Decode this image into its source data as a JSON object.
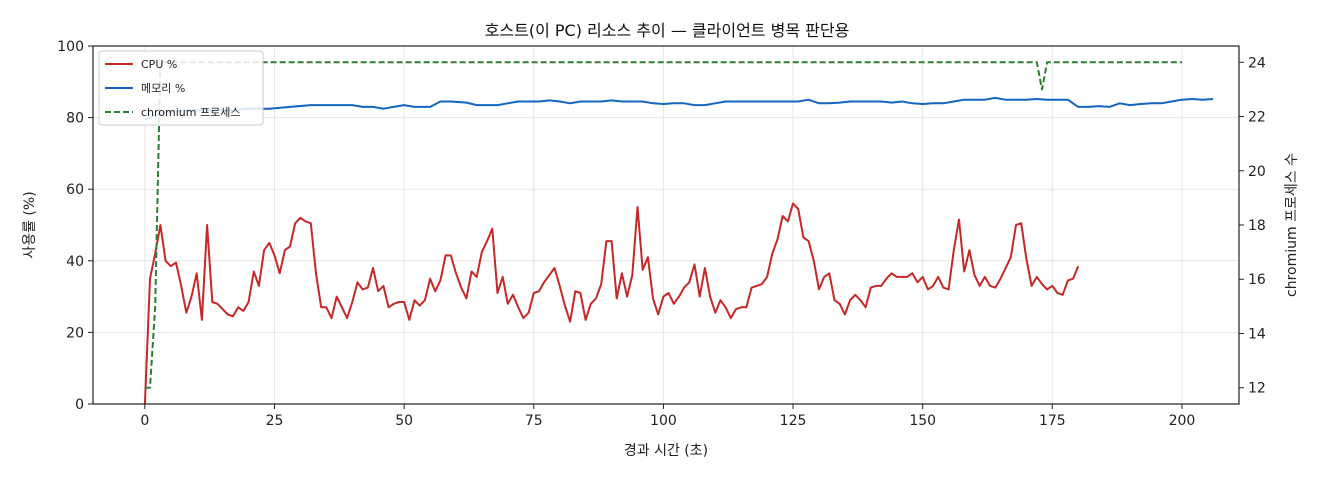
{
  "chart_data": {
    "type": "line",
    "title": "호스트(이 PC) 리소스 추이 — 클라이언트 병목 판단용",
    "xlabel": "경과 시간 (초)",
    "ylabel": "사용률 (%)",
    "y2label": "chromium 프로세스 수",
    "xlim": [
      -10,
      211
    ],
    "ylim": [
      0,
      100
    ],
    "y2lim": [
      11.4,
      24.6
    ],
    "xticks": [
      "0",
      "25",
      "50",
      "75",
      "100",
      "125",
      "150",
      "175",
      "200"
    ],
    "yticks": [
      "0",
      "20",
      "40",
      "60",
      "80",
      "100"
    ],
    "y2ticks": [
      "12",
      "14",
      "16",
      "18",
      "20",
      "22",
      "24"
    ],
    "grid": true,
    "legend_position": "top-left",
    "colors": {
      "cpu": "#c62828",
      "memory": "#1565c0",
      "chromium": "#2e7d32"
    },
    "series": [
      {
        "name": "CPU %",
        "axis": "left",
        "style": "solid",
        "points": [
          [
            0,
            0
          ],
          [
            1,
            35
          ],
          [
            2,
            42
          ],
          [
            3,
            50
          ],
          [
            4,
            40
          ],
          [
            5,
            38.5
          ],
          [
            6,
            39.5
          ],
          [
            7,
            33
          ],
          [
            8,
            25.5
          ],
          [
            9,
            30
          ],
          [
            10,
            36.5
          ],
          [
            11,
            23.5
          ],
          [
            12,
            50
          ],
          [
            13,
            28.5
          ],
          [
            14,
            28
          ],
          [
            15,
            26.5
          ],
          [
            16,
            25
          ],
          [
            17,
            24.5
          ],
          [
            18,
            27
          ],
          [
            19,
            26
          ],
          [
            20,
            28.5
          ],
          [
            21,
            37
          ],
          [
            22,
            33
          ],
          [
            23,
            43
          ],
          [
            24,
            45
          ],
          [
            25,
            41.5
          ],
          [
            26,
            36.5
          ],
          [
            27,
            43
          ],
          [
            28,
            44
          ],
          [
            29,
            50.5
          ],
          [
            30,
            52
          ],
          [
            31,
            51
          ],
          [
            32,
            50.5
          ],
          [
            33,
            36.5
          ],
          [
            34,
            27
          ],
          [
            35,
            27
          ],
          [
            36,
            24
          ],
          [
            37,
            30
          ],
          [
            38,
            27
          ],
          [
            39,
            24
          ],
          [
            40,
            28.5
          ],
          [
            41,
            34
          ],
          [
            42,
            32
          ],
          [
            43,
            32.5
          ],
          [
            44,
            38
          ],
          [
            45,
            31.5
          ],
          [
            46,
            33
          ],
          [
            47,
            27
          ],
          [
            48,
            28
          ],
          [
            49,
            28.5
          ],
          [
            50,
            28.5
          ],
          [
            51,
            23.5
          ],
          [
            52,
            29
          ],
          [
            53,
            27.5
          ],
          [
            54,
            29
          ],
          [
            55,
            35
          ],
          [
            56,
            31.5
          ],
          [
            57,
            34.5
          ],
          [
            58,
            41.5
          ],
          [
            59,
            41.5
          ],
          [
            60,
            36.5
          ],
          [
            61,
            32.5
          ],
          [
            62,
            29.5
          ],
          [
            63,
            37
          ],
          [
            64,
            35.5
          ],
          [
            65,
            42.5
          ],
          [
            66,
            45.5
          ],
          [
            67,
            49
          ],
          [
            68,
            31
          ],
          [
            69,
            35.5
          ],
          [
            70,
            28
          ],
          [
            71,
            30.5
          ],
          [
            72,
            27
          ],
          [
            73,
            24
          ],
          [
            74,
            25.5
          ],
          [
            75,
            31
          ],
          [
            76,
            31.5
          ],
          [
            77,
            34
          ],
          [
            78,
            36
          ],
          [
            79,
            38
          ],
          [
            80,
            33
          ],
          [
            81,
            27.5
          ],
          [
            82,
            23
          ],
          [
            83,
            31.5
          ],
          [
            84,
            31
          ],
          [
            85,
            23.5
          ],
          [
            86,
            28
          ],
          [
            87,
            29.5
          ],
          [
            88,
            33.5
          ],
          [
            89,
            45.5
          ],
          [
            90,
            45.5
          ],
          [
            91,
            29.5
          ],
          [
            92,
            36.5
          ],
          [
            93,
            30
          ],
          [
            94,
            36
          ],
          [
            95,
            55
          ],
          [
            96,
            37.5
          ],
          [
            97,
            41
          ],
          [
            98,
            29.5
          ],
          [
            99,
            25
          ],
          [
            100,
            30
          ],
          [
            101,
            31
          ],
          [
            102,
            28
          ],
          [
            103,
            30
          ],
          [
            104,
            32.5
          ],
          [
            105,
            34
          ],
          [
            106,
            39
          ],
          [
            107,
            30
          ],
          [
            108,
            38
          ],
          [
            109,
            30
          ],
          [
            110,
            25.5
          ],
          [
            111,
            29
          ],
          [
            112,
            27
          ],
          [
            113,
            24
          ],
          [
            114,
            26.5
          ],
          [
            115,
            27
          ],
          [
            116,
            27
          ],
          [
            117,
            32.5
          ],
          [
            118,
            33
          ],
          [
            119,
            33.5
          ],
          [
            120,
            35.5
          ],
          [
            121,
            42
          ],
          [
            122,
            46
          ],
          [
            123,
            52.5
          ],
          [
            124,
            51
          ],
          [
            125,
            56
          ],
          [
            126,
            54.5
          ],
          [
            127,
            46.5
          ],
          [
            128,
            45.5
          ],
          [
            129,
            40
          ],
          [
            130,
            32
          ],
          [
            131,
            35.5
          ],
          [
            132,
            36.5
          ],
          [
            133,
            29
          ],
          [
            134,
            28
          ],
          [
            135,
            25
          ],
          [
            136,
            29
          ],
          [
            137,
            30.5
          ],
          [
            138,
            29
          ],
          [
            139,
            27
          ],
          [
            140,
            32.5
          ],
          [
            141,
            33
          ],
          [
            142,
            33
          ],
          [
            143,
            35
          ],
          [
            144,
            36.5
          ],
          [
            145,
            35.5
          ],
          [
            146,
            35.5
          ],
          [
            147,
            35.5
          ],
          [
            148,
            36.5
          ],
          [
            149,
            34
          ],
          [
            150,
            35.5
          ],
          [
            151,
            32
          ],
          [
            152,
            33
          ],
          [
            153,
            35.5
          ],
          [
            154,
            32.5
          ],
          [
            155,
            32
          ],
          [
            156,
            43
          ],
          [
            157,
            51.5
          ],
          [
            158,
            37
          ],
          [
            159,
            43
          ],
          [
            160,
            36
          ],
          [
            161,
            33
          ],
          [
            162,
            35.5
          ],
          [
            163,
            33
          ],
          [
            164,
            32.5
          ],
          [
            165,
            35
          ],
          [
            166,
            38
          ],
          [
            167,
            41
          ],
          [
            168,
            50
          ],
          [
            169,
            50.5
          ],
          [
            170,
            40.5
          ],
          [
            171,
            33
          ],
          [
            172,
            35.5
          ],
          [
            173,
            33.5
          ],
          [
            174,
            32
          ],
          [
            175,
            33
          ],
          [
            176,
            31
          ],
          [
            177,
            30.5
          ],
          [
            178,
            34.5
          ],
          [
            179,
            35
          ],
          [
            180,
            38.5
          ]
        ]
      },
      {
        "name": "메모리 %",
        "axis": "left",
        "style": "solid",
        "points": [
          [
            0,
            79.5
          ],
          [
            2,
            80.5
          ],
          [
            4,
            81.5
          ],
          [
            8,
            82
          ],
          [
            12,
            82
          ],
          [
            16,
            82
          ],
          [
            20,
            82.5
          ],
          [
            24,
            82.5
          ],
          [
            28,
            83
          ],
          [
            32,
            83.5
          ],
          [
            36,
            83.5
          ],
          [
            40,
            83.5
          ],
          [
            42,
            83
          ],
          [
            44,
            83
          ],
          [
            46,
            82.5
          ],
          [
            48,
            83
          ],
          [
            50,
            83.5
          ],
          [
            52,
            83
          ],
          [
            55,
            83
          ],
          [
            57,
            84.5
          ],
          [
            59,
            84.5
          ],
          [
            62,
            84.2
          ],
          [
            64,
            83.5
          ],
          [
            66,
            83.5
          ],
          [
            68,
            83.5
          ],
          [
            70,
            84
          ],
          [
            72,
            84.5
          ],
          [
            74,
            84.5
          ],
          [
            76,
            84.5
          ],
          [
            78,
            84.8
          ],
          [
            80,
            84.5
          ],
          [
            82,
            84
          ],
          [
            84,
            84.5
          ],
          [
            86,
            84.5
          ],
          [
            88,
            84.5
          ],
          [
            90,
            84.8
          ],
          [
            92,
            84.5
          ],
          [
            94,
            84.5
          ],
          [
            96,
            84.5
          ],
          [
            98,
            84
          ],
          [
            100,
            83.8
          ],
          [
            102,
            84
          ],
          [
            104,
            84
          ],
          [
            106,
            83.5
          ],
          [
            108,
            83.5
          ],
          [
            110,
            84
          ],
          [
            112,
            84.5
          ],
          [
            114,
            84.5
          ],
          [
            116,
            84.5
          ],
          [
            118,
            84.5
          ],
          [
            120,
            84.5
          ],
          [
            122,
            84.5
          ],
          [
            124,
            84.5
          ],
          [
            126,
            84.5
          ],
          [
            128,
            85
          ],
          [
            130,
            84
          ],
          [
            132,
            84
          ],
          [
            134,
            84.2
          ],
          [
            136,
            84.5
          ],
          [
            138,
            84.5
          ],
          [
            140,
            84.5
          ],
          [
            142,
            84.5
          ],
          [
            144,
            84.2
          ],
          [
            146,
            84.5
          ],
          [
            148,
            84
          ],
          [
            150,
            83.8
          ],
          [
            152,
            84
          ],
          [
            154,
            84
          ],
          [
            156,
            84.5
          ],
          [
            158,
            85
          ],
          [
            160,
            85
          ],
          [
            162,
            85
          ],
          [
            164,
            85.5
          ],
          [
            166,
            85
          ],
          [
            168,
            85
          ],
          [
            170,
            85
          ],
          [
            172,
            85.2
          ],
          [
            174,
            85
          ],
          [
            176,
            85
          ],
          [
            178,
            85
          ],
          [
            180,
            83
          ],
          [
            182,
            83
          ],
          [
            184,
            83.2
          ],
          [
            186,
            83
          ],
          [
            188,
            84
          ],
          [
            190,
            83.5
          ],
          [
            192,
            83.8
          ],
          [
            194,
            84
          ],
          [
            196,
            84
          ],
          [
            198,
            84.5
          ],
          [
            200,
            85
          ],
          [
            202,
            85.2
          ],
          [
            204,
            85
          ],
          [
            206,
            85.2
          ]
        ]
      },
      {
        "name": "chromium 프로세스",
        "axis": "right",
        "style": "dashed",
        "points": [
          [
            0,
            12
          ],
          [
            1,
            12
          ],
          [
            2,
            15
          ],
          [
            3,
            24
          ],
          [
            172,
            24
          ],
          [
            173,
            23
          ],
          [
            174,
            24
          ],
          [
            200,
            24
          ]
        ]
      }
    ]
  }
}
